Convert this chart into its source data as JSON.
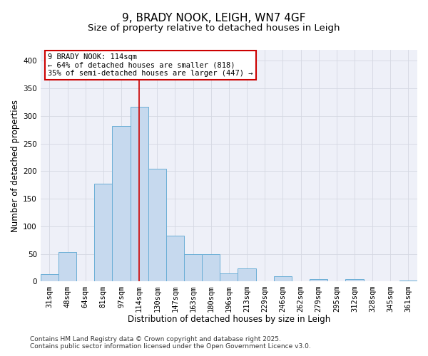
{
  "title": "9, BRADY NOOK, LEIGH, WN7 4GF",
  "subtitle": "Size of property relative to detached houses in Leigh",
  "xlabel": "Distribution of detached houses by size in Leigh",
  "ylabel": "Number of detached properties",
  "bar_labels": [
    "31sqm",
    "48sqm",
    "64sqm",
    "81sqm",
    "97sqm",
    "114sqm",
    "130sqm",
    "147sqm",
    "163sqm",
    "180sqm",
    "196sqm",
    "213sqm",
    "229sqm",
    "246sqm",
    "262sqm",
    "279sqm",
    "295sqm",
    "312sqm",
    "328sqm",
    "345sqm",
    "361sqm"
  ],
  "bar_values": [
    14,
    53,
    0,
    178,
    282,
    317,
    204,
    83,
    50,
    50,
    15,
    24,
    0,
    9,
    0,
    5,
    0,
    5,
    0,
    0,
    2
  ],
  "bar_color": "#c6d9ee",
  "bar_edge_color": "#6aaed6",
  "grid_color": "#d4d8e2",
  "bg_color": "#eef0f8",
  "annotation_line1": "9 BRADY NOOK: 114sqm",
  "annotation_line2": "← 64% of detached houses are smaller (818)",
  "annotation_line3": "35% of semi-detached houses are larger (447) →",
  "annotation_box_edge_color": "#cc0000",
  "vline_x_index": 5,
  "vline_color": "#cc0000",
  "ylim": [
    0,
    420
  ],
  "yticks": [
    0,
    50,
    100,
    150,
    200,
    250,
    300,
    350,
    400
  ],
  "footer_line1": "Contains HM Land Registry data © Crown copyright and database right 2025.",
  "footer_line2": "Contains public sector information licensed under the Open Government Licence v3.0.",
  "title_fontsize": 11,
  "subtitle_fontsize": 9.5,
  "axis_label_fontsize": 8.5,
  "tick_fontsize": 7.5,
  "annotation_fontsize": 7.5,
  "footer_fontsize": 6.5
}
